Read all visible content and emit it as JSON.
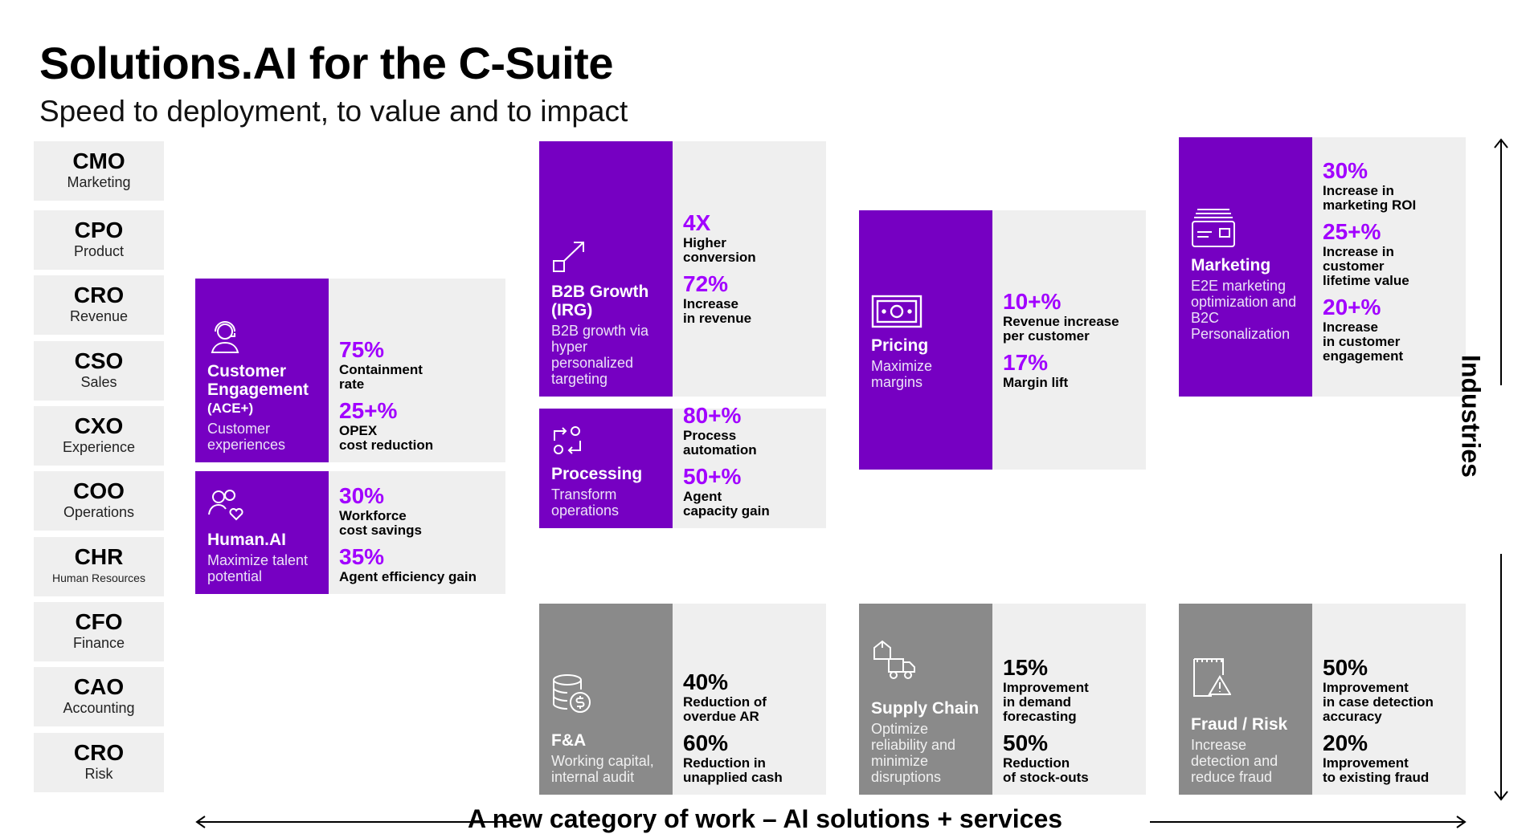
{
  "title": "Solutions.AI for the C-Suite",
  "subtitle": "Speed to deployment, to value and to impact",
  "roles": [
    {
      "abbr": "CMO",
      "name": "Marketing"
    },
    {
      "abbr": "CPO",
      "name": "Product"
    },
    {
      "abbr": "CRO",
      "name": "Revenue"
    },
    {
      "abbr": "CSO",
      "name": "Sales"
    },
    {
      "abbr": "CXO",
      "name": "Experience"
    },
    {
      "abbr": "COO",
      "name": "Operations"
    },
    {
      "abbr": "CHR",
      "name": "Human Resources"
    },
    {
      "abbr": "CFO",
      "name": "Finance"
    },
    {
      "abbr": "CAO",
      "name": "Accounting"
    },
    {
      "abbr": "CRO",
      "name": "Risk"
    }
  ],
  "cards": {
    "customer_engagement": {
      "title": "Customer Engagement",
      "sub": "(ACE+)",
      "desc": "Customer experiences",
      "icon": "headset-agent-icon",
      "metrics": [
        {
          "value": "75%",
          "label": "Containment\nrate"
        },
        {
          "value": "25+%",
          "label": "OPEX\ncost reduction"
        }
      ]
    },
    "human_ai": {
      "title": "Human.AI",
      "desc": "Maximize talent potential",
      "icon": "people-heart-icon",
      "metrics": [
        {
          "value": "30%",
          "label": "Workforce\ncost savings"
        },
        {
          "value": "35%",
          "label": "Agent efficiency gain"
        }
      ]
    },
    "b2b_growth": {
      "title": "B2B Growth (IRG)",
      "desc": "B2B growth via hyper personalized targeting",
      "icon": "growth-arrow-icon",
      "metrics": [
        {
          "value": "4X",
          "label": "Higher\nconversion"
        },
        {
          "value": "72%",
          "label": "Increase\nin revenue"
        }
      ]
    },
    "processing": {
      "title": "Processing",
      "desc": "Transform operations",
      "icon": "gear-cycle-icon",
      "metrics": [
        {
          "value": "80+%",
          "label": "Process\nautomation"
        },
        {
          "value": "50+%",
          "label": "Agent\ncapacity gain"
        }
      ]
    },
    "pricing": {
      "title": "Pricing",
      "desc": "Maximize margins",
      "icon": "banknote-icon",
      "metrics": [
        {
          "value": "10+%",
          "label": "Revenue increase\nper customer"
        },
        {
          "value": "17%",
          "label": "Margin lift"
        }
      ]
    },
    "marketing": {
      "title": "Marketing",
      "desc": "E2E marketing optimization and B2C Personalization",
      "icon": "card-stack-icon",
      "metrics": [
        {
          "value": "30%",
          "label": "Increase in\nmarketing ROI"
        },
        {
          "value": "25+%",
          "label": "Increase in\ncustomer\nlifetime value"
        },
        {
          "value": "20+%",
          "label": "Increase\nin customer\nengagement"
        }
      ]
    },
    "fa": {
      "title": "F&A",
      "desc": "Working capital, internal audit",
      "icon": "coins-dollar-icon",
      "metrics": [
        {
          "value": "40%",
          "label": "Reduction of\noverdue AR"
        },
        {
          "value": "60%",
          "label": "Reduction in\nunapplied cash"
        }
      ]
    },
    "supply_chain": {
      "title": "Supply Chain",
      "desc": "Optimize reliability and minimize disruptions",
      "icon": "delivery-truck-icon",
      "metrics": [
        {
          "value": "15%",
          "label": "Improvement\nin demand\nforecasting"
        },
        {
          "value": "50%",
          "label": "Reduction\nof stock-outs"
        }
      ]
    },
    "fraud_risk": {
      "title": "Fraud / Risk",
      "desc": "Increase detection and reduce fraud",
      "icon": "warning-document-icon",
      "metrics": [
        {
          "value": "50%",
          "label": "Improvement\nin case detection\naccuracy"
        },
        {
          "value": "20%",
          "label": "Improvement\nto existing fraud"
        }
      ]
    }
  },
  "axis_vertical_label": "Industries",
  "axis_horizontal_label": "A new category of work – AI solutions + services",
  "colors": {
    "purple": "#7600c2",
    "accent": "#a100ff",
    "gray": "#8a8a8a",
    "panel": "#efefef"
  }
}
